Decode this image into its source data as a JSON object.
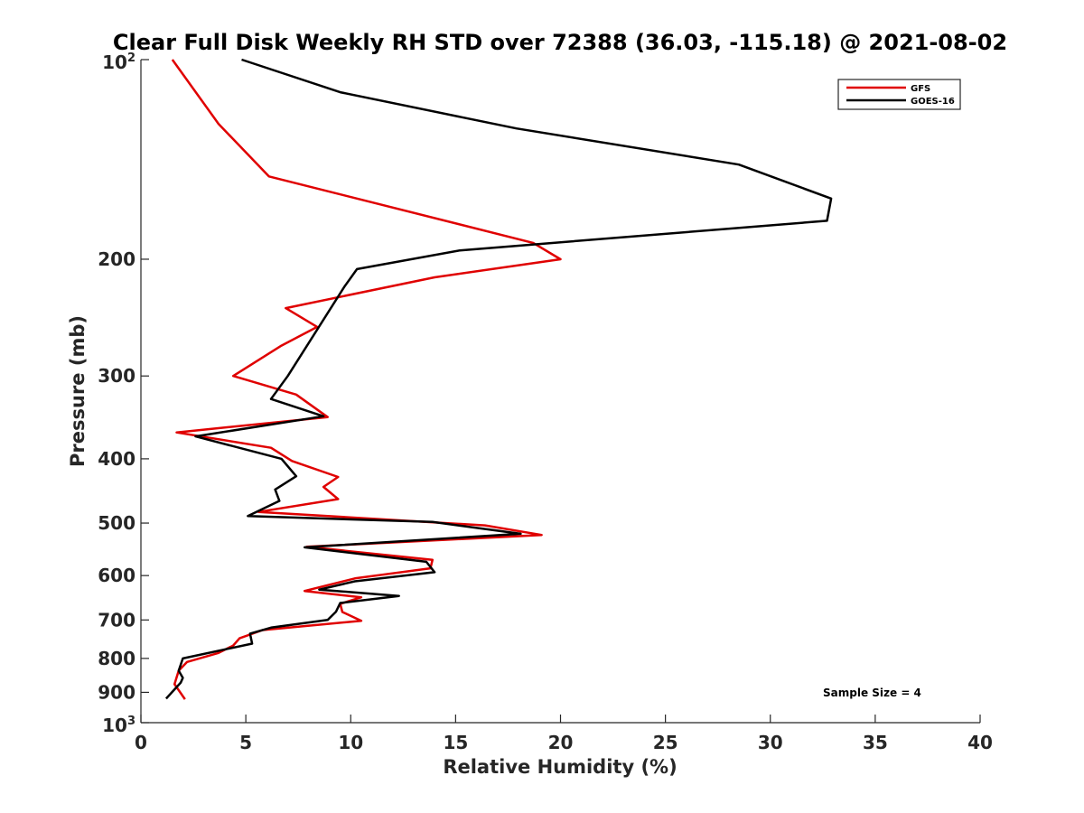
{
  "chart_data": {
    "type": "line",
    "title": "Clear Full Disk Weekly RH STD over 72388 (36.03, -115.18) @ 2021-08-02",
    "xlabel": "Relative Humidity (%)",
    "ylabel": "Pressure (mb)",
    "xlim": [
      0,
      40
    ],
    "ylim": [
      100,
      1000
    ],
    "y_scale": "log",
    "y_reversed": true,
    "x_ticks": [
      "0",
      "5",
      "10",
      "15",
      "20",
      "25",
      "30",
      "35",
      "40"
    ],
    "y_ticks": [
      {
        "value": 100,
        "base": "10",
        "exp": "2"
      },
      {
        "value": 200,
        "label": "200"
      },
      {
        "value": 300,
        "label": "300"
      },
      {
        "value": 400,
        "label": "400"
      },
      {
        "value": 500,
        "label": "500"
      },
      {
        "value": 600,
        "label": "600"
      },
      {
        "value": 700,
        "label": "700"
      },
      {
        "value": 800,
        "label": "800"
      },
      {
        "value": 900,
        "label": "900"
      },
      {
        "value": 1000,
        "base": "10",
        "exp": "3"
      }
    ],
    "legend_position": "top-right",
    "annotation": "Sample Size = 4",
    "series": [
      {
        "name": "GFS",
        "color": "#e00000",
        "points": [
          [
            1.5,
            100
          ],
          [
            3.7,
            125
          ],
          [
            6.1,
            150
          ],
          [
            18.7,
            189
          ],
          [
            20.0,
            200
          ],
          [
            14.0,
            213
          ],
          [
            6.9,
            237
          ],
          [
            8.4,
            253
          ],
          [
            6.7,
            270
          ],
          [
            4.4,
            300
          ],
          [
            7.4,
            320
          ],
          [
            8.9,
            346
          ],
          [
            1.7,
            365
          ],
          [
            6.2,
            385
          ],
          [
            7.2,
            403
          ],
          [
            9.4,
            426
          ],
          [
            8.7,
            441
          ],
          [
            9.4,
            460
          ],
          [
            5.6,
            481
          ],
          [
            16.4,
            504
          ],
          [
            19.1,
            521
          ],
          [
            7.9,
            543
          ],
          [
            13.9,
            568
          ],
          [
            13.8,
            585
          ],
          [
            10.2,
            606
          ],
          [
            7.8,
            633
          ],
          [
            10.5,
            647
          ],
          [
            9.5,
            662
          ],
          [
            9.6,
            681
          ],
          [
            10.5,
            702
          ],
          [
            5.8,
            725
          ],
          [
            4.7,
            746
          ],
          [
            4.4,
            765
          ],
          [
            3.7,
            785
          ],
          [
            2.2,
            810
          ],
          [
            1.8,
            835
          ],
          [
            1.6,
            875
          ],
          [
            2.1,
            922
          ]
        ]
      },
      {
        "name": "GOES-16",
        "color": "#000000",
        "points": [
          [
            4.8,
            100
          ],
          [
            9.5,
            112
          ],
          [
            17.9,
            127
          ],
          [
            28.5,
            144
          ],
          [
            32.9,
            162
          ],
          [
            32.7,
            175
          ],
          [
            15.2,
            194
          ],
          [
            10.3,
            207
          ],
          [
            9.7,
            220
          ],
          [
            7.0,
            300
          ],
          [
            6.2,
            325
          ],
          [
            8.7,
            345
          ],
          [
            2.6,
            370
          ],
          [
            6.7,
            400
          ],
          [
            7.4,
            425
          ],
          [
            6.4,
            445
          ],
          [
            6.6,
            463
          ],
          [
            5.1,
            488
          ],
          [
            13.9,
            498
          ],
          [
            18.1,
            519
          ],
          [
            7.8,
            544
          ],
          [
            13.6,
            572
          ],
          [
            14.0,
            593
          ],
          [
            10.2,
            612
          ],
          [
            8.5,
            630
          ],
          [
            12.3,
            644
          ],
          [
            9.5,
            660
          ],
          [
            9.3,
            680
          ],
          [
            8.9,
            700
          ],
          [
            6.2,
            719
          ],
          [
            5.2,
            734
          ],
          [
            5.3,
            760
          ],
          [
            2.0,
            800
          ],
          [
            1.8,
            835
          ],
          [
            2.0,
            856
          ],
          [
            1.9,
            870
          ],
          [
            1.2,
            920
          ]
        ]
      }
    ]
  }
}
